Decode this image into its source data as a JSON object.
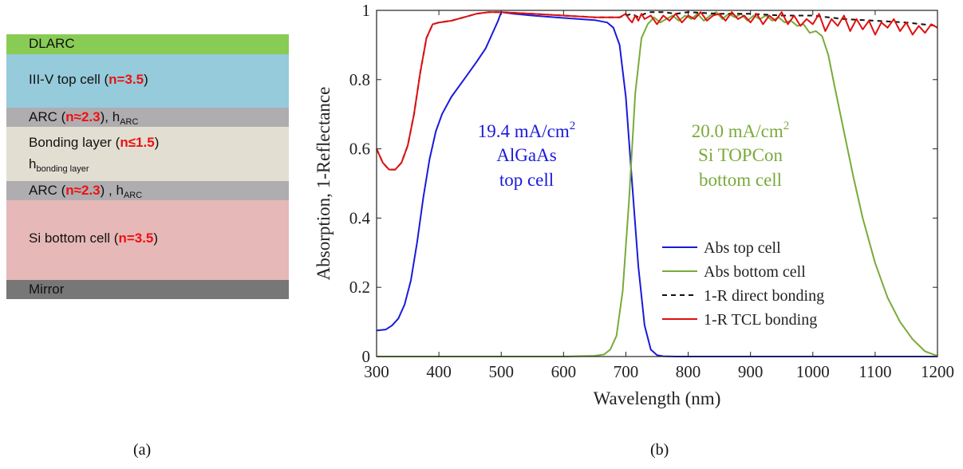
{
  "panel_labels": {
    "a": "(a)",
    "b": "(b)"
  },
  "stack": {
    "layers": [
      {
        "id": "dlarc",
        "color": "#88cc55",
        "parts": [
          {
            "t": "DLARC"
          }
        ]
      },
      {
        "id": "top",
        "color": "#95cbdb",
        "parts": [
          {
            "t": "III-V top cell ("
          },
          {
            "t": "n=3.5",
            "c": "hi"
          },
          {
            "t": ")"
          }
        ]
      },
      {
        "id": "arc1",
        "color": "#b0adb0",
        "parts": [
          {
            "t": "ARC ("
          },
          {
            "t": "n≈2.3",
            "c": "hi"
          },
          {
            "t": "), h"
          },
          {
            "t": "ARC",
            "c": "sub"
          }
        ]
      },
      {
        "id": "bond",
        "color": "#e2dfd2",
        "parts": [
          {
            "t": "Bonding layer ("
          },
          {
            "t": "n≤1.5",
            "c": "hi"
          },
          {
            "t": ")"
          }
        ],
        "line2": [
          {
            "t": "h"
          },
          {
            "t": "bonding layer",
            "c": "sub"
          }
        ]
      },
      {
        "id": "arc2",
        "color": "#b0adb0",
        "parts": [
          {
            "t": "ARC ("
          },
          {
            "t": "n≈2.3",
            "c": "hi"
          },
          {
            "t": ") , h"
          },
          {
            "t": "ARC",
            "c": "sub"
          }
        ]
      },
      {
        "id": "bottom",
        "color": "#e6b8b8",
        "parts": [
          {
            "t": "Si bottom cell ("
          },
          {
            "t": "n=3.5",
            "c": "hi"
          },
          {
            "t": ")"
          }
        ]
      },
      {
        "id": "mirror",
        "color": "#777777",
        "parts": [
          {
            "t": "Mirror"
          }
        ]
      }
    ]
  },
  "chart_data": {
    "type": "line",
    "xlabel": "Wavelength (nm)",
    "ylabel": "Absorption, 1-Reflectance",
    "xlim": [
      300,
      1200
    ],
    "ylim": [
      0,
      1
    ],
    "xticks": [
      300,
      400,
      500,
      600,
      700,
      800,
      900,
      1000,
      1100,
      1200
    ],
    "yticks": [
      0,
      0.2,
      0.4,
      0.6,
      0.8,
      1
    ],
    "ytick_labels": [
      "0",
      "0.2",
      "0.4",
      "0.6",
      "0.8",
      "1"
    ],
    "legend_position": "bottom-right",
    "annotations": [
      {
        "id": "top",
        "color": "#1a1adb",
        "line1": "19.4 mA/cm",
        "sup": "2",
        "line2": "AlGaAs",
        "line3": "top cell"
      },
      {
        "id": "bottom",
        "color": "#7aaa3a",
        "line1": "20.0 mA/cm",
        "sup": "2",
        "line2": "Si TOPCon",
        "line3": "bottom cell"
      }
    ],
    "series": [
      {
        "name": "Abs top cell",
        "color": "#1a1adb",
        "dash": "",
        "x": [
          300,
          315,
          325,
          335,
          345,
          355,
          365,
          375,
          385,
          395,
          405,
          420,
          440,
          460,
          475,
          485,
          495,
          500,
          520,
          550,
          600,
          650,
          670,
          680,
          690,
          700,
          710,
          720,
          730,
          740,
          750,
          760,
          780,
          800,
          900,
          1000,
          1100,
          1200
        ],
        "y": [
          0.075,
          0.078,
          0.09,
          0.11,
          0.15,
          0.22,
          0.33,
          0.46,
          0.57,
          0.65,
          0.7,
          0.75,
          0.8,
          0.85,
          0.89,
          0.93,
          0.97,
          0.995,
          0.99,
          0.985,
          0.978,
          0.972,
          0.965,
          0.95,
          0.9,
          0.75,
          0.5,
          0.26,
          0.09,
          0.02,
          0.004,
          0.001,
          0,
          0,
          0,
          0,
          0,
          0
        ]
      },
      {
        "name": "Abs bottom cell",
        "color": "#7aaa3a",
        "dash": "",
        "x": [
          300,
          400,
          500,
          600,
          650,
          665,
          675,
          685,
          695,
          705,
          715,
          725,
          735,
          745,
          755,
          765,
          775,
          785,
          795,
          805,
          815,
          825,
          835,
          845,
          855,
          865,
          875,
          885,
          895,
          905,
          915,
          925,
          935,
          945,
          955,
          965,
          975,
          985,
          995,
          1005,
          1015,
          1025,
          1035,
          1050,
          1065,
          1080,
          1100,
          1120,
          1140,
          1160,
          1180,
          1195,
          1200
        ],
        "y": [
          0,
          0,
          0,
          0,
          0.002,
          0.006,
          0.02,
          0.06,
          0.19,
          0.45,
          0.76,
          0.92,
          0.96,
          0.98,
          0.965,
          0.975,
          0.985,
          0.97,
          0.985,
          0.975,
          0.99,
          0.97,
          0.985,
          0.995,
          0.975,
          0.99,
          0.98,
          0.99,
          0.97,
          0.985,
          0.975,
          0.985,
          0.97,
          0.98,
          0.965,
          0.97,
          0.955,
          0.96,
          0.935,
          0.94,
          0.925,
          0.87,
          0.78,
          0.65,
          0.52,
          0.4,
          0.27,
          0.17,
          0.1,
          0.05,
          0.015,
          0.005,
          0.002
        ]
      },
      {
        "name": "1-R direct bonding",
        "color": "#111111",
        "dash": "6,5",
        "x": [
          300,
          310,
          320,
          330,
          340,
          350,
          360,
          370,
          380,
          390,
          400,
          420,
          440,
          460,
          480,
          500,
          550,
          600,
          650,
          690,
          700,
          710,
          720,
          730,
          740,
          760,
          780,
          800,
          850,
          900,
          950,
          1000,
          1050,
          1100,
          1150,
          1200
        ],
        "y": [
          0.6,
          0.56,
          0.54,
          0.54,
          0.56,
          0.61,
          0.7,
          0.82,
          0.92,
          0.96,
          0.965,
          0.97,
          0.98,
          0.99,
          0.995,
          0.995,
          0.99,
          0.985,
          0.98,
          0.98,
          0.985,
          0.99,
          0.98,
          0.99,
          0.995,
          0.995,
          0.99,
          0.995,
          0.99,
          0.99,
          0.985,
          0.985,
          0.975,
          0.97,
          0.965,
          0.955
        ]
      },
      {
        "name": "1-R TCL bonding",
        "color": "#e01010",
        "dash": "",
        "x": [
          300,
          310,
          320,
          330,
          340,
          350,
          360,
          370,
          380,
          390,
          400,
          420,
          440,
          460,
          480,
          500,
          550,
          600,
          650,
          690,
          700,
          705,
          710,
          715,
          720,
          725,
          730,
          740,
          750,
          760,
          770,
          780,
          790,
          800,
          810,
          820,
          830,
          840,
          850,
          860,
          870,
          880,
          890,
          900,
          910,
          920,
          930,
          940,
          950,
          960,
          970,
          980,
          990,
          1000,
          1010,
          1020,
          1030,
          1040,
          1050,
          1060,
          1070,
          1080,
          1090,
          1100,
          1110,
          1120,
          1130,
          1140,
          1150,
          1160,
          1170,
          1180,
          1190,
          1200
        ],
        "y": [
          0.6,
          0.56,
          0.54,
          0.54,
          0.56,
          0.61,
          0.7,
          0.82,
          0.92,
          0.96,
          0.965,
          0.97,
          0.98,
          0.99,
          0.995,
          0.995,
          0.99,
          0.985,
          0.98,
          0.98,
          0.99,
          0.975,
          0.965,
          0.985,
          0.97,
          0.99,
          0.975,
          0.985,
          0.96,
          0.985,
          0.97,
          0.99,
          0.965,
          0.985,
          0.975,
          0.995,
          0.97,
          0.985,
          0.99,
          0.97,
          0.995,
          0.975,
          0.985,
          0.965,
          0.99,
          0.96,
          0.985,
          0.97,
          0.995,
          0.96,
          0.985,
          0.955,
          0.975,
          0.96,
          0.99,
          0.94,
          0.975,
          0.955,
          0.985,
          0.94,
          0.975,
          0.945,
          0.97,
          0.93,
          0.965,
          0.95,
          0.975,
          0.94,
          0.965,
          0.93,
          0.955,
          0.935,
          0.96,
          0.95
        ]
      }
    ]
  }
}
